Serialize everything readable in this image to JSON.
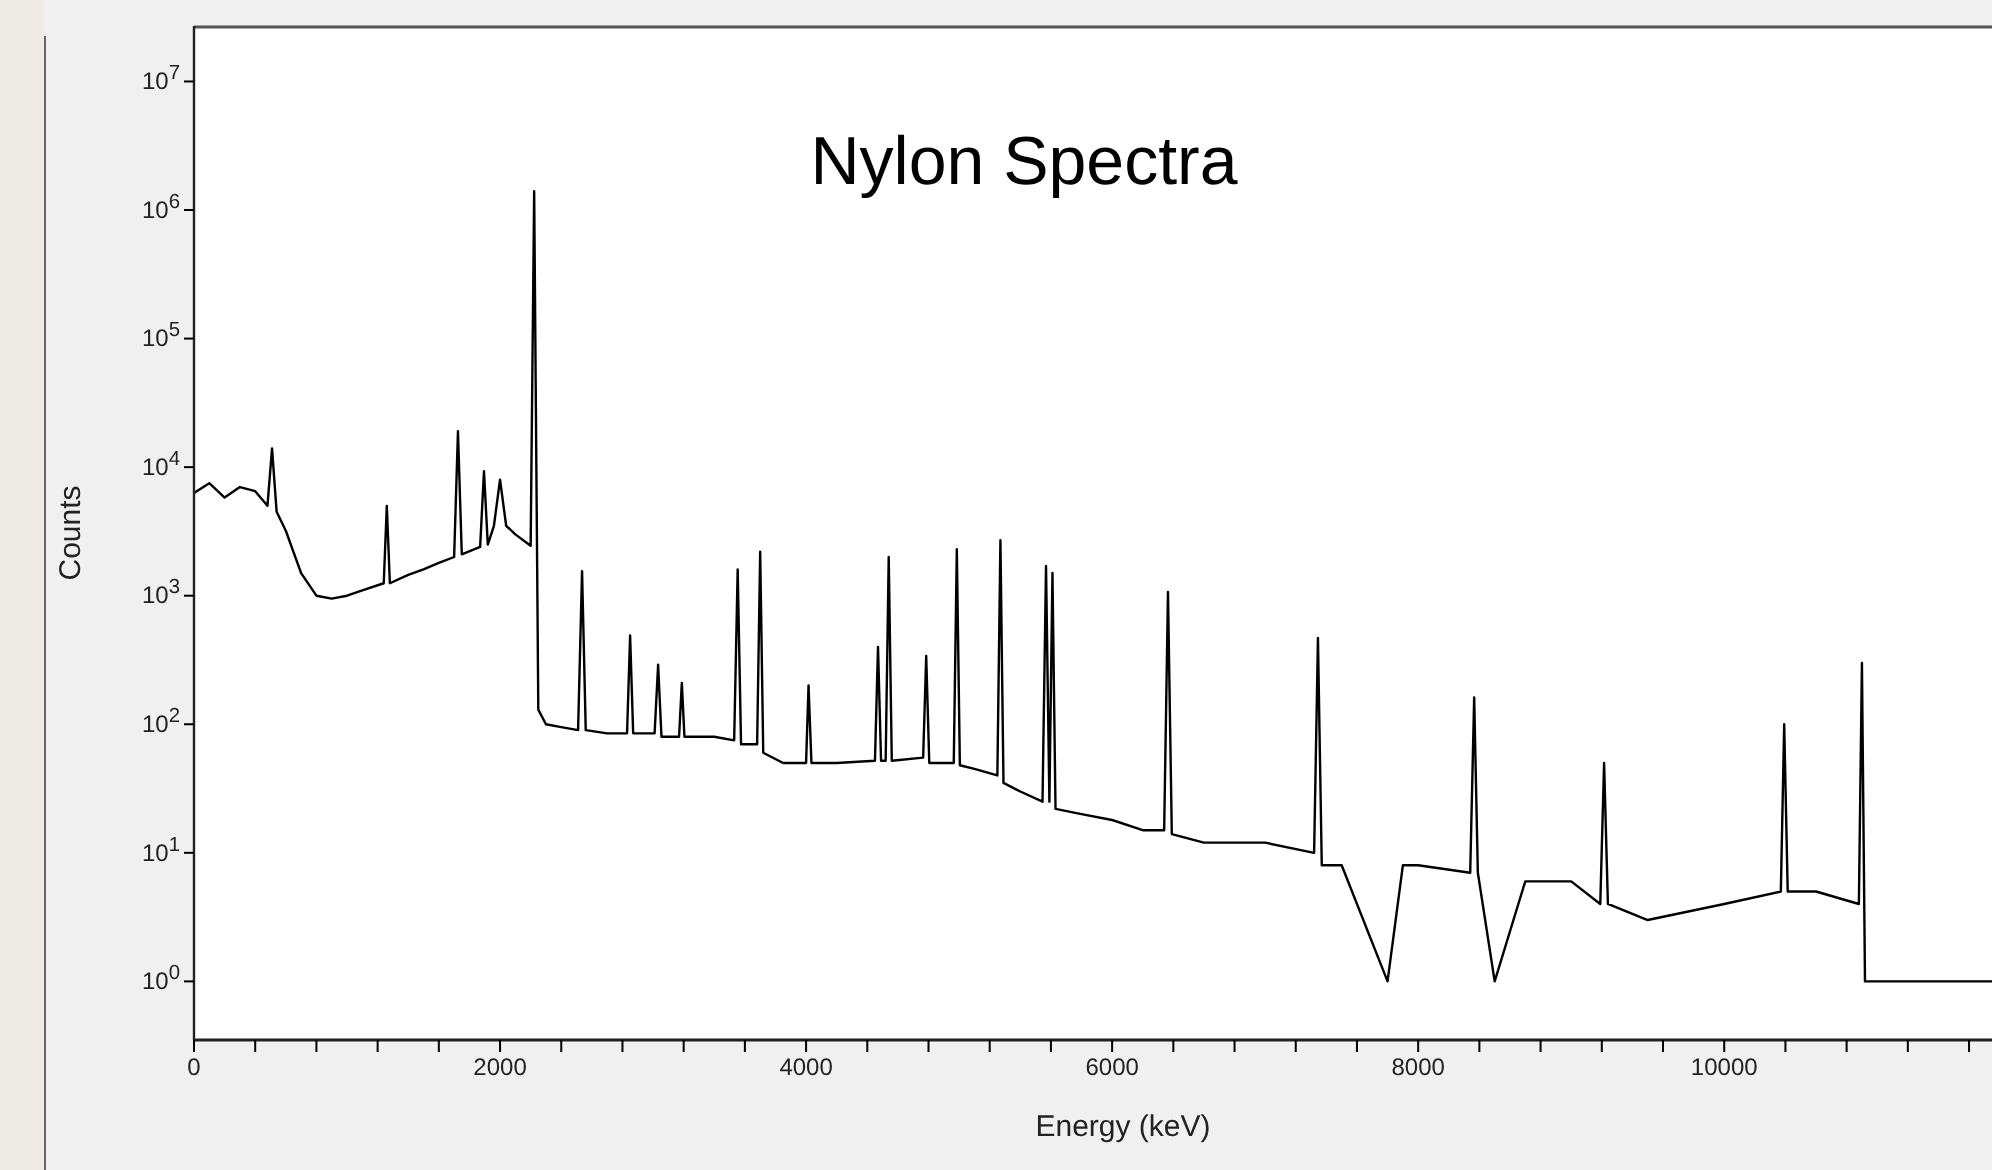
{
  "chart_data": {
    "type": "line",
    "title": "Nylon Spectra",
    "xlabel": "Energy (keV)",
    "ylabel": "Counts",
    "log": "y",
    "grid": false,
    "marker": "none",
    "line_style": "solid",
    "xlim": [
      0,
      11750
    ],
    "ylim": [
      0.35,
      27000000
    ],
    "xticks": [
      0,
      {
        "value": 400,
        "label": null
      },
      {
        "value": 800,
        "label": null
      },
      {
        "value": 1200,
        "label": null
      },
      {
        "value": 1600,
        "label": null
      },
      2000,
      {
        "value": 2400,
        "label": null
      },
      {
        "value": 2800,
        "label": null
      },
      {
        "value": 3200,
        "label": null
      },
      {
        "value": 3600,
        "label": null
      },
      4000,
      {
        "value": 4400,
        "label": null
      },
      {
        "value": 4800,
        "label": null
      },
      {
        "value": 5200,
        "label": null
      },
      {
        "value": 5600,
        "label": null
      },
      6000,
      {
        "value": 6400,
        "label": null
      },
      {
        "value": 6800,
        "label": null
      },
      {
        "value": 7200,
        "label": null
      },
      {
        "value": 7600,
        "label": null
      },
      8000,
      {
        "value": 8400,
        "label": null
      },
      {
        "value": 8800,
        "label": null
      },
      {
        "value": 9200,
        "label": null
      },
      {
        "value": 9600,
        "label": null
      },
      10000,
      {
        "value": 10400,
        "label": null
      },
      {
        "value": 10800,
        "label": null
      },
      {
        "value": 11200,
        "label": null
      },
      {
        "value": 11600,
        "label": null
      }
    ],
    "yticks": [
      {
        "value": 1,
        "label": "10$^{0}$"
      },
      {
        "value": 10,
        "label": "10$^{1}$"
      },
      {
        "value": 100,
        "label": "10$^{2}$"
      },
      {
        "value": 1000,
        "label": "10$^{3}$"
      },
      {
        "value": 10000,
        "label": "10$^{4}$"
      },
      {
        "value": 100000,
        "label": "10$^{5}$"
      },
      {
        "value": 1000000,
        "label": "10$^{6}$"
      },
      {
        "value": 10000000,
        "label": "10$^{7}$"
      }
    ],
    "series": [
      {
        "color": "#000000",
        "x": [
          0,
          100,
          200,
          300,
          400,
          480,
          510,
          540,
          600,
          700,
          800,
          900,
          1000,
          1100,
          1240,
          1260,
          1280,
          1400,
          1500,
          1600,
          1700,
          1725,
          1750,
          1870,
          1895,
          1920,
          1960,
          2000,
          2040,
          2100,
          2200,
          2223,
          2250,
          2300,
          2400,
          2510,
          2536,
          2560,
          2700,
          2830,
          2850,
          2870,
          3010,
          3033,
          3055,
          3170,
          3188,
          3205,
          3400,
          3530,
          3553,
          3575,
          3680,
          3700,
          3720,
          3850,
          4000,
          4016,
          4035,
          4200,
          4450,
          4470,
          4490,
          4520,
          4540,
          4560,
          4765,
          4785,
          4805,
          4965,
          4985,
          5005,
          5100,
          5250,
          5270,
          5290,
          5400,
          5545,
          5568,
          5590,
          5610,
          5630,
          5800,
          6000,
          6200,
          6340,
          6365,
          6390,
          6600,
          7000,
          7320,
          7345,
          7370,
          7500,
          7800,
          7900,
          8000,
          8340,
          8366,
          8390,
          8500,
          8700,
          9000,
          9190,
          9215,
          9240,
          9500,
          10000,
          10370,
          10392,
          10415,
          10600,
          10880,
          10900,
          10920,
          11200,
          11750
        ],
        "values": [
          6300,
          7500,
          5800,
          7000,
          6500,
          5000,
          14000,
          4500,
          3200,
          1500,
          1000,
          950,
          1000,
          1100,
          1250,
          5000,
          1250,
          1450,
          1600,
          1800,
          2000,
          19000,
          2100,
          2400,
          9300,
          2500,
          3500,
          8000,
          3500,
          3000,
          2450,
          1400000,
          130,
          100,
          95,
          90,
          1550,
          90,
          85,
          85,
          490,
          85,
          85,
          290,
          80,
          80,
          210,
          80,
          80,
          75,
          1600,
          70,
          70,
          2200,
          60,
          50,
          50,
          200,
          50,
          50,
          52,
          400,
          52,
          52,
          2000,
          52,
          55,
          340,
          50,
          50,
          2300,
          48,
          45,
          40,
          2700,
          35,
          30,
          25,
          1700,
          25,
          1500,
          22,
          20,
          18,
          15,
          15,
          1070,
          14,
          12,
          12,
          10,
          470,
          8,
          8,
          1,
          8,
          8,
          7,
          162,
          7,
          1,
          6,
          6,
          4,
          50,
          4,
          3,
          4,
          5,
          100,
          5,
          5,
          4,
          300,
          1,
          1,
          1
        ]
      }
    ]
  }
}
